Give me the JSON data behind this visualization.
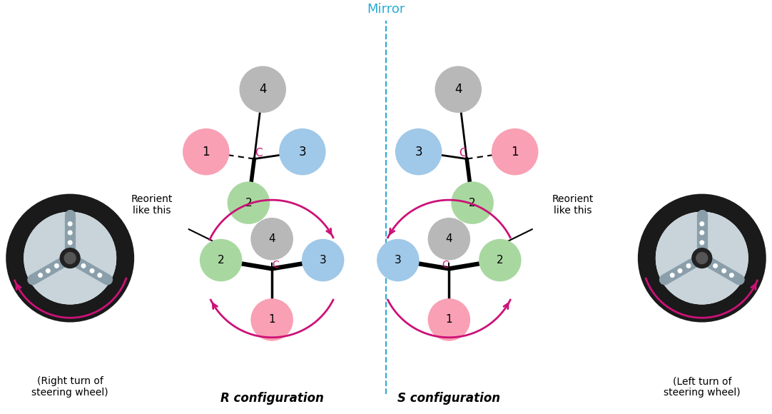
{
  "title": "Mirror",
  "title_color": "#29ABD4",
  "background_color": "#ffffff",
  "arrow_color": "#CC1177",
  "bond_color": "#000000",
  "text_color": "#000000",
  "pink_color": "#F9A0B4",
  "blue_color": "#A0C8E8",
  "green_color": "#A8D8A0",
  "gray_color": "#B8B8B8",
  "c_label_color": "#CC1177",
  "R_label": "R configuration",
  "S_label": "S configuration",
  "right_wheel_label": "(Right turn of\nsteering wheel)",
  "left_wheel_label": "(Left turn of\nsteering wheel)",
  "reorient_text": "Reorient\nlike this"
}
